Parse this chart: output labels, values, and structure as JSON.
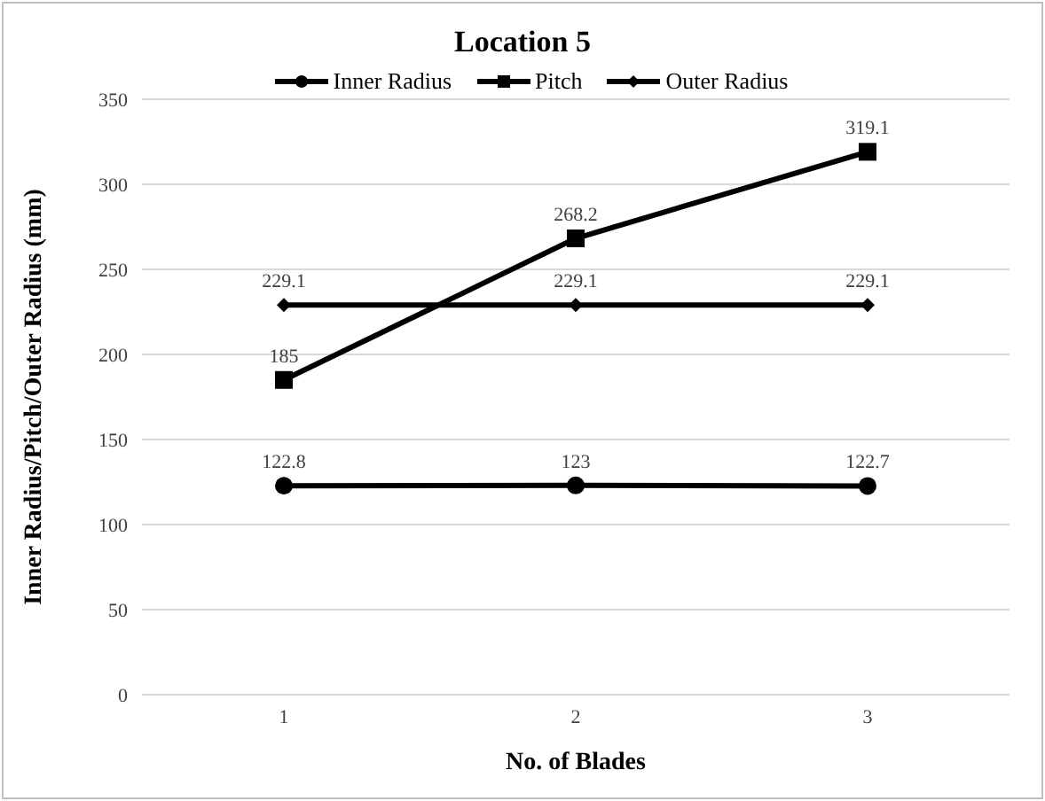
{
  "chart_data": {
    "type": "line",
    "title": "Location 5",
    "xlabel": "No. of Blades",
    "ylabel": "Inner Radius/Pitch/Outer Radius (mm)",
    "categories": [
      "1",
      "2",
      "3"
    ],
    "series": [
      {
        "name": "Inner Radius",
        "color": "#000000",
        "marker": "circle",
        "values": [
          122.8,
          123,
          122.7
        ]
      },
      {
        "name": "Pitch",
        "color": "#000000",
        "marker": "square",
        "values": [
          185,
          268.2,
          319.1
        ]
      },
      {
        "name": "Outer Radius",
        "color": "#000000",
        "marker": "diamond",
        "values": [
          229.1,
          229.1,
          229.1
        ]
      }
    ],
    "ylim": [
      0,
      350
    ],
    "yticks": [
      0,
      50,
      100,
      150,
      200,
      250,
      300,
      350
    ],
    "grid": "y",
    "legend": "top",
    "data_labels": true,
    "line_style": "solid"
  }
}
